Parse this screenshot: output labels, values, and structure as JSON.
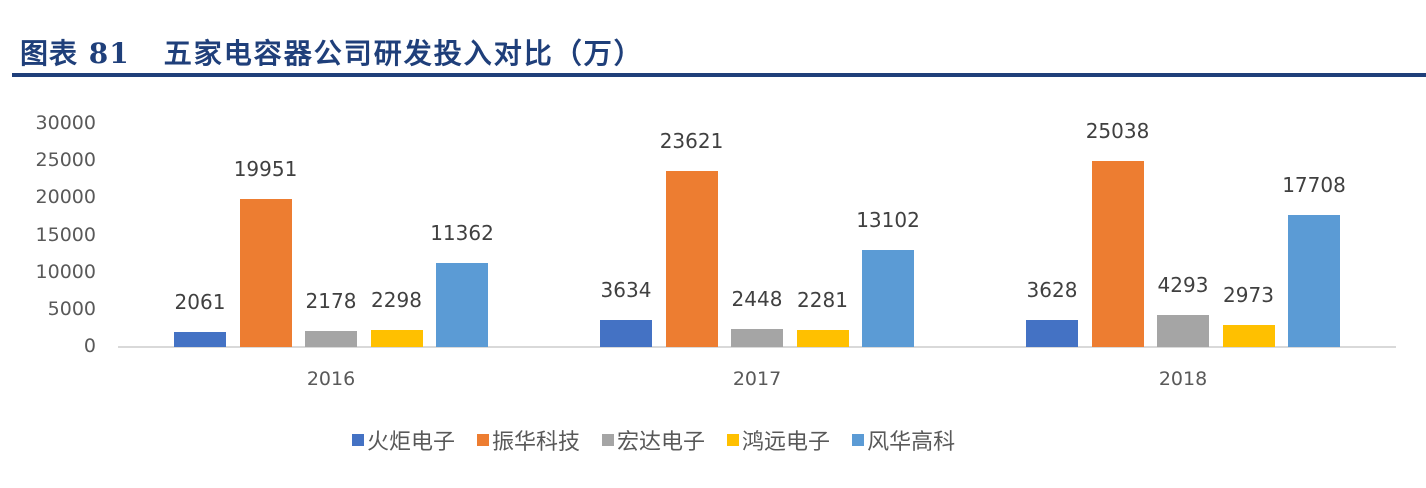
{
  "header": {
    "prefix": "图表 81",
    "title": "五家电容器公司研发投入对比（万）"
  },
  "chart_data": {
    "type": "bar",
    "title": "五家电容器公司研发投入对比（万）",
    "xlabel": "",
    "ylabel": "",
    "ylim": [
      0,
      30000
    ],
    "yticks": [
      0,
      5000,
      10000,
      15000,
      20000,
      25000,
      30000
    ],
    "grid": false,
    "legend_position": "bottom",
    "categories": [
      "2016",
      "2017",
      "2018"
    ],
    "series": [
      {
        "name": "火炬电子",
        "color": "#4472c4",
        "values": [
          2061,
          3634,
          3628
        ]
      },
      {
        "name": "振华科技",
        "color": "#ed7d31",
        "values": [
          19951,
          23621,
          25038
        ]
      },
      {
        "name": "宏达电子",
        "color": "#a5a5a5",
        "values": [
          2178,
          2448,
          4293
        ]
      },
      {
        "name": "鸿远电子",
        "color": "#ffc000",
        "values": [
          2298,
          2281,
          2973
        ]
      },
      {
        "name": "风华高科",
        "color": "#5b9bd5",
        "values": [
          11362,
          13102,
          17708
        ]
      }
    ]
  }
}
